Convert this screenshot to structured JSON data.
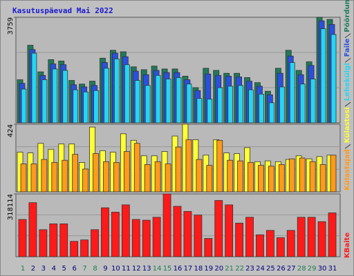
{
  "chart_data": [
    {
      "type": "bar",
      "title": "Kasutuspäevad Mai 2022",
      "categories": [
        "1",
        "2",
        "3",
        "4",
        "5",
        "6",
        "7",
        "8",
        "9",
        "10",
        "11",
        "12",
        "13",
        "14",
        "15",
        "16",
        "17",
        "18",
        "19",
        "20",
        "21",
        "22",
        "23",
        "24",
        "25",
        "26",
        "27",
        "28",
        "29",
        "30",
        "31"
      ],
      "category_colors": [
        "#1b7f4f",
        "#000080",
        "#000080",
        "#000080",
        "#000080",
        "#000080",
        "#1b7f4f",
        "#1b7f4f",
        "#000080",
        "#000080",
        "#000080",
        "#000080",
        "#000080",
        "#1b7f4f",
        "#1b7f4f",
        "#000080",
        "#000080",
        "#000080",
        "#000080",
        "#000080",
        "#1b7f4f",
        "#1b7f4f",
        "#000080",
        "#000080",
        "#000080",
        "#000080",
        "#000080",
        "#1b7f4f",
        "#1b7f4f",
        "#000080",
        "#000080"
      ],
      "ylim": [
        0,
        3759
      ],
      "yticks": [
        3759
      ],
      "series": [
        {
          "name": "Pöördumisi",
          "color": "#1f7a5a",
          "values": [
            1534,
            2762,
            1815,
            2250,
            2199,
            1509,
            1381,
            1483,
            2301,
            2583,
            2531,
            1994,
            1892,
            2020,
            1918,
            1918,
            1662,
            1253,
            1943,
            1867,
            1764,
            1764,
            1611,
            1432,
            1125,
            1943,
            2583,
            1867,
            2173,
            3759,
            3682
          ]
        },
        {
          "name": "Faile",
          "color": "#2a4fe0",
          "values": [
            1406,
            2608,
            1688,
            2097,
            2071,
            1355,
            1279,
            1330,
            2148,
            2480,
            2352,
            1841,
            1713,
            1867,
            1790,
            1790,
            1534,
            1151,
            1739,
            1688,
            1662,
            1636,
            1483,
            1304,
            997,
            1764,
            2378,
            1713,
            2046,
            3631,
            3503
          ]
        },
        {
          "name": "Lehekülgi",
          "color": "#24d6f2",
          "values": [
            1202,
            2480,
            1534,
            1918,
            1867,
            1176,
            1100,
            1151,
            1943,
            2276,
            2071,
            1509,
            1330,
            1688,
            1560,
            1611,
            1381,
            869,
            844,
            1253,
            1304,
            1330,
            1176,
            1023,
            716,
            1279,
            2148,
            1381,
            1560,
            3350,
            3145
          ]
        }
      ]
    },
    {
      "type": "bar",
      "ylim": [
        0,
        424
      ],
      "yticks": [
        424
      ],
      "series": [
        {
          "name": "Külastusi",
          "color": "#ffff33",
          "values": [
            249,
            244,
            304,
            267,
            300,
            300,
            184,
            406,
            258,
            249,
            364,
            323,
            226,
            226,
            253,
            350,
            424,
            327,
            230,
            327,
            244,
            240,
            277,
            189,
            194,
            189,
            203,
            226,
            207,
            221,
            230
          ]
        },
        {
          "name": "Külastajad",
          "color": "#ff9a1a",
          "values": [
            175,
            175,
            203,
            184,
            198,
            235,
            143,
            240,
            189,
            184,
            253,
            304,
            171,
            189,
            175,
            281,
            327,
            203,
            166,
            323,
            198,
            194,
            184,
            166,
            161,
            171,
            207,
            212,
            189,
            171,
            230
          ]
        }
      ]
    },
    {
      "type": "bar",
      "ylim": [
        0,
        318114
      ],
      "yticks": [
        318114
      ],
      "series": [
        {
          "name": "KBaite",
          "color": "#ff1a1a",
          "values": [
            188649,
            273726,
            136863,
            166455,
            166455,
            77679,
            85077,
            136863,
            247833,
            225639,
            262629,
            188649,
            184950,
            199746,
            318114,
            255231,
            229338,
            210843,
            92475,
            284823,
            262629,
            170154,
            199746,
            110970,
            133164,
            96174,
            133164,
            199746,
            199746,
            177552,
            221940
          ]
        }
      ]
    }
  ]
}
